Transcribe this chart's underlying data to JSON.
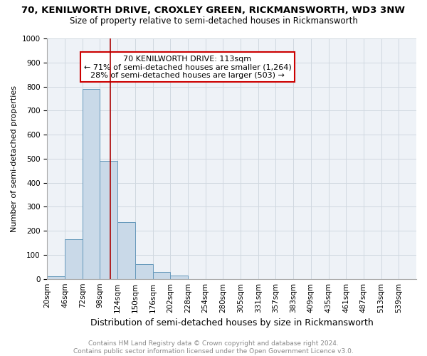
{
  "title1": "70, KENILWORTH DRIVE, CROXLEY GREEN, RICKMANSWORTH, WD3 3NW",
  "title2": "Size of property relative to semi-detached houses in Rickmansworth",
  "xlabel": "Distribution of semi-detached houses by size in Rickmansworth",
  "ylabel": "Number of semi-detached properties",
  "bin_labels": [
    "20sqm",
    "46sqm",
    "72sqm",
    "98sqm",
    "124sqm",
    "150sqm",
    "176sqm",
    "202sqm",
    "228sqm",
    "254sqm",
    "280sqm",
    "305sqm",
    "331sqm",
    "357sqm",
    "383sqm",
    "409sqm",
    "435sqm",
    "461sqm",
    "487sqm",
    "513sqm",
    "539sqm"
  ],
  "bar_values": [
    10,
    165,
    790,
    490,
    235,
    62,
    30,
    13,
    0,
    0,
    0,
    0,
    0,
    0,
    0,
    0,
    0,
    0,
    0,
    0,
    0
  ],
  "bar_color": "#c9d9e8",
  "bar_edge_color": "#6699bb",
  "property_bin_index": 3.42,
  "property_line_color": "#aa0000",
  "annotation_line1": "70 KENILWORTH DRIVE: 113sqm",
  "annotation_line2": "← 71% of semi-detached houses are smaller (1,264)",
  "annotation_line3": "28% of semi-detached houses are larger (503) →",
  "annotation_box_color": "#ffffff",
  "annotation_box_edge_color": "#cc0000",
  "ylim": [
    0,
    1000
  ],
  "yticks": [
    0,
    100,
    200,
    300,
    400,
    500,
    600,
    700,
    800,
    900,
    1000
  ],
  "grid_color": "#d0d8e0",
  "bg_color": "#eef2f7",
  "footer": "Contains HM Land Registry data © Crown copyright and database right 2024.\nContains public sector information licensed under the Open Government Licence v3.0.",
  "title1_fontsize": 9.5,
  "title2_fontsize": 8.5,
  "xlabel_fontsize": 9,
  "ylabel_fontsize": 8,
  "tick_fontsize": 7.5,
  "annotation_fontsize": 8,
  "footer_fontsize": 6.5
}
